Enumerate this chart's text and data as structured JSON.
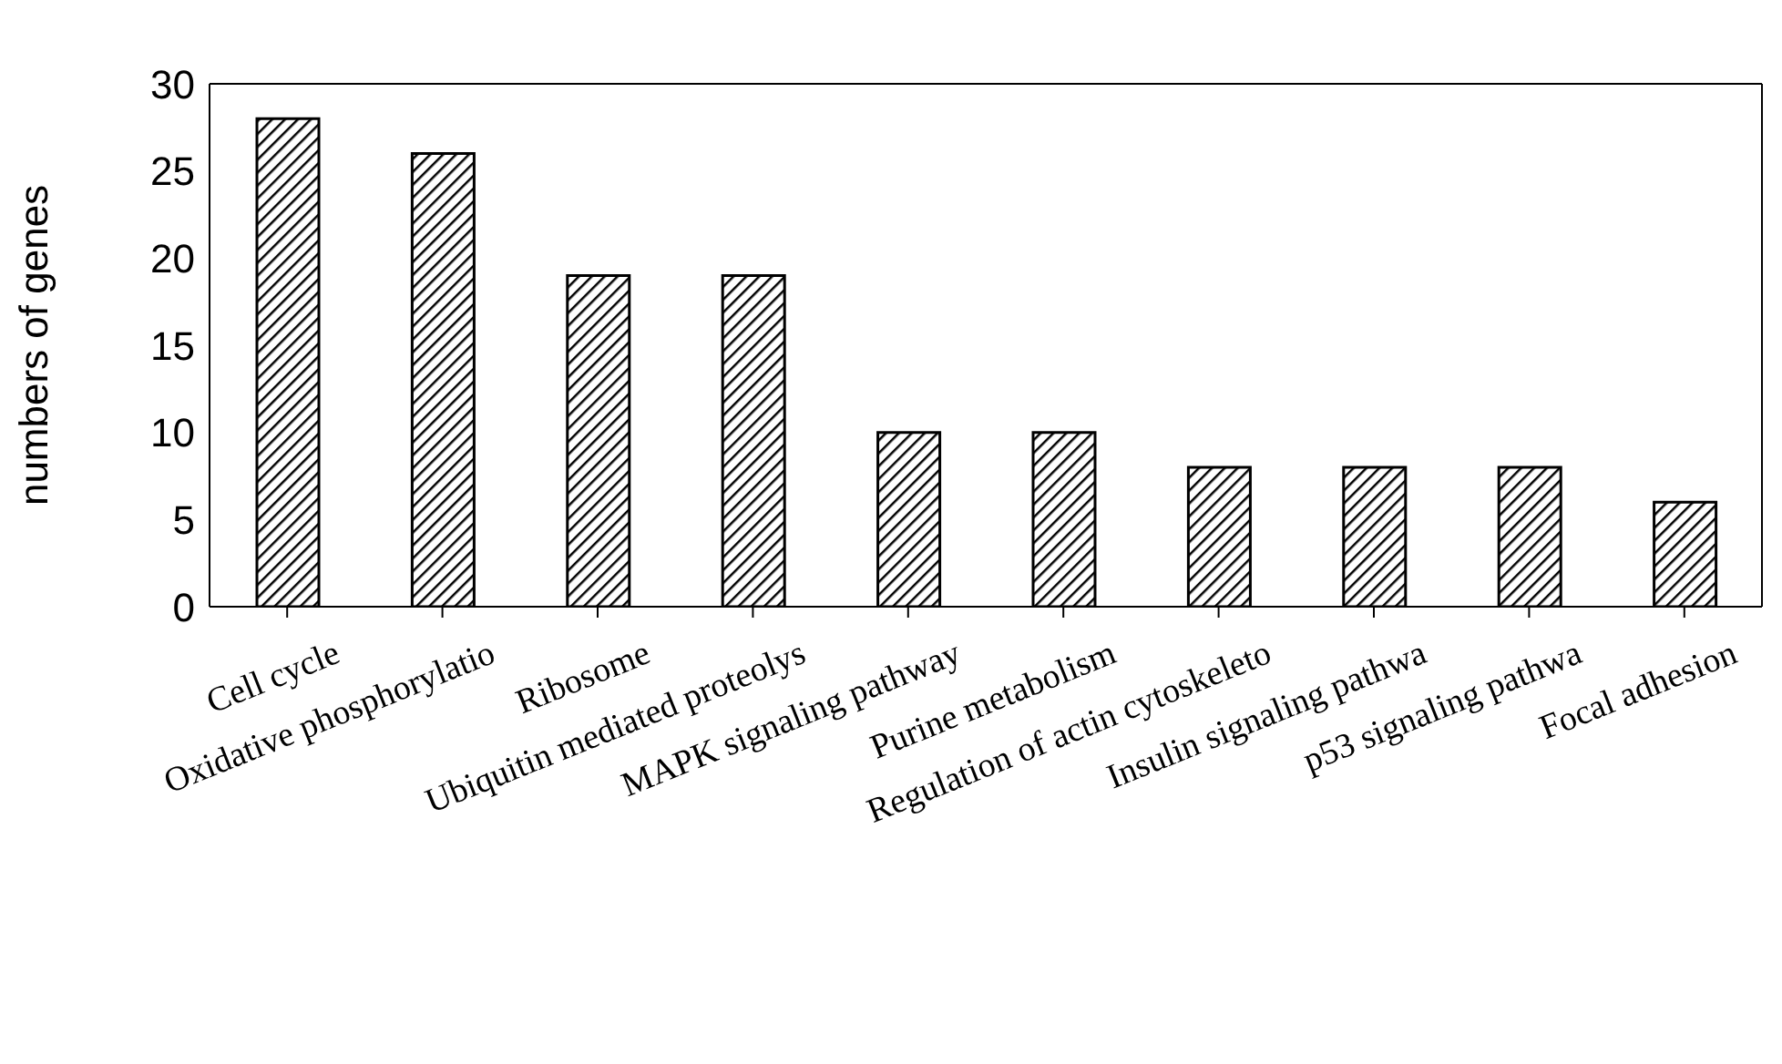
{
  "chart_data": {
    "type": "bar",
    "ylabel": "numbers of genes",
    "categories": [
      "Cell cycle",
      "Oxidative phosphorylatio",
      "Ribosome",
      "Ubiquitin mediated proteolys",
      "MAPK signaling pathway",
      "Purine metabolism",
      "Regulation of actin cytoskeleto",
      "Insulin signaling pathwa",
      "p53 signaling pathwa",
      "Focal adhesion"
    ],
    "values": [
      28,
      26,
      19,
      19,
      10,
      10,
      8,
      8,
      8,
      6
    ],
    "color": "#000000",
    "ylim": [
      0,
      30
    ],
    "yticks": [
      0,
      5,
      10,
      15,
      20,
      25,
      30
    ],
    "grid": false,
    "legend": false
  }
}
